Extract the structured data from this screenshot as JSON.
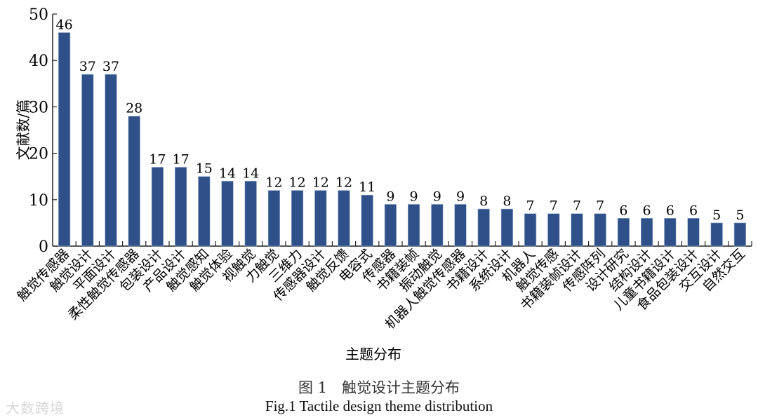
{
  "chart_data": {
    "type": "bar",
    "title": "",
    "xlabel": "主题分布",
    "ylabel": "文献数/篇",
    "ylim": [
      0,
      50
    ],
    "yticks": [
      0,
      10,
      20,
      30,
      40,
      50
    ],
    "grid": false,
    "legend": null,
    "bar_color": "#2f5088",
    "categories": [
      "触觉传感器",
      "触觉设计",
      "平面设计",
      "柔性触觉传感器",
      "包装设计",
      "产品设计",
      "触觉感知",
      "触觉体验",
      "视触觉",
      "力触觉",
      "三维力",
      "传感器设计",
      "触觉反馈",
      "电容式",
      "传感器",
      "书籍装帧",
      "振动触觉",
      "机器人触觉传感器",
      "书籍设计",
      "系统设计",
      "机器人",
      "触觉传感",
      "书籍装帧设计",
      "传感阵列",
      "设计研究",
      "结构设计",
      "儿童书籍设计",
      "食品包装设计",
      "交互设计",
      "自然交互"
    ],
    "values": [
      46,
      37,
      37,
      28,
      17,
      17,
      15,
      14,
      14,
      12,
      12,
      12,
      12,
      11,
      9,
      9,
      9,
      9,
      8,
      8,
      7,
      7,
      7,
      7,
      6,
      6,
      6,
      6,
      5,
      5
    ]
  },
  "caption": {
    "cn": "图 1　触觉设计主题分布",
    "en": "Fig.1 Tactile design theme distribution"
  },
  "watermark": "大数跨境"
}
